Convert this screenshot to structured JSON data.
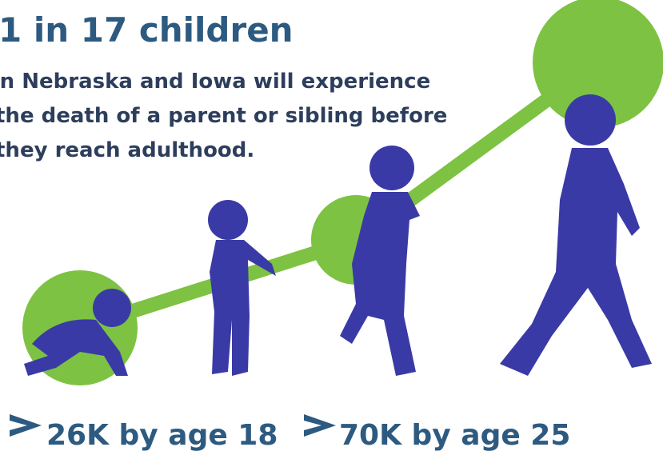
{
  "headline": "1 in 17 children",
  "description": [
    "In Nebraska and Iowa will experience",
    "the death of a parent or sibling before",
    "they reach adulthood."
  ],
  "stats": [
    "26K by age 18",
    "70K by age 25"
  ]
}
